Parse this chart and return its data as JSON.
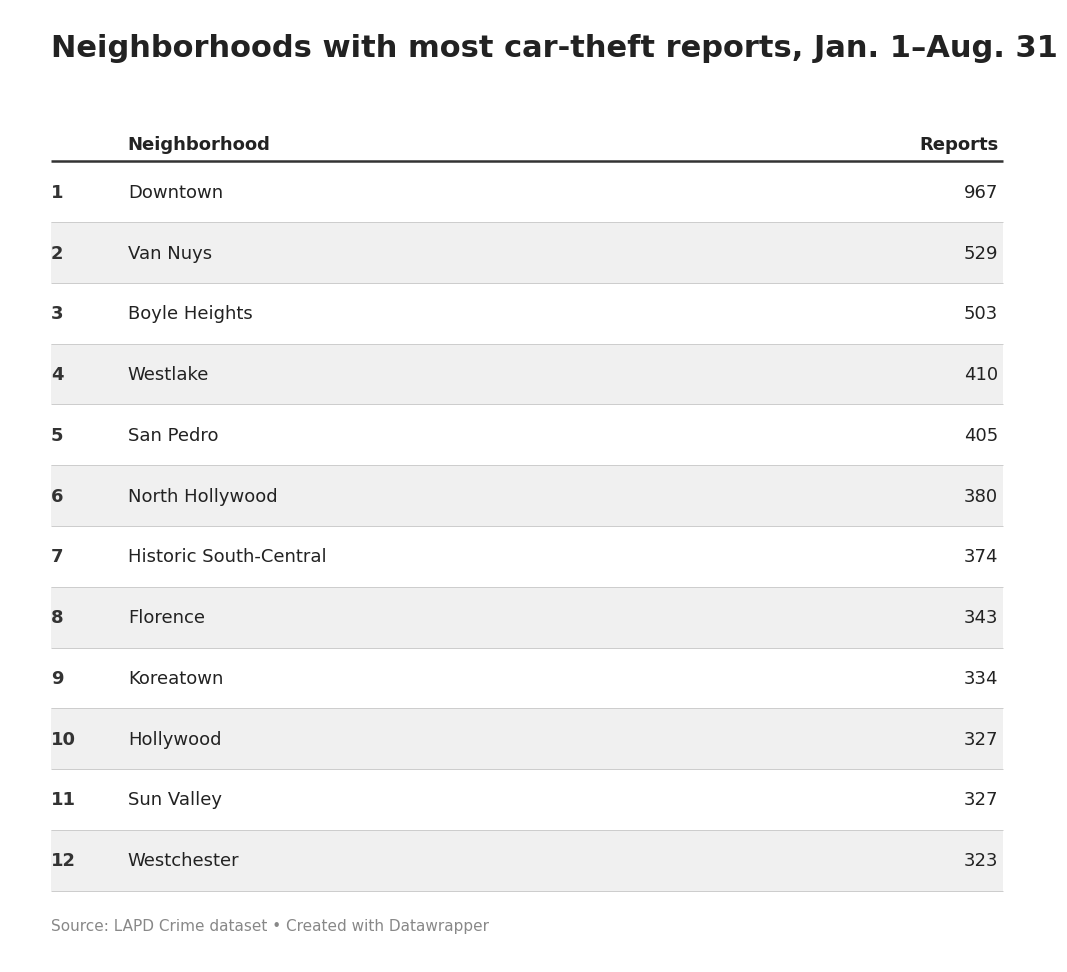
{
  "title": "Neighborhoods with most car-theft reports, Jan. 1–Aug. 31",
  "col_header_neighborhood": "Neighborhood",
  "col_header_reports": "Reports",
  "rows": [
    {
      "rank": "1",
      "neighborhood": "Downtown",
      "reports": "967"
    },
    {
      "rank": "2",
      "neighborhood": "Van Nuys",
      "reports": "529"
    },
    {
      "rank": "3",
      "neighborhood": "Boyle Heights",
      "reports": "503"
    },
    {
      "rank": "4",
      "neighborhood": "Westlake",
      "reports": "410"
    },
    {
      "rank": "5",
      "neighborhood": "San Pedro",
      "reports": "405"
    },
    {
      "rank": "6",
      "neighborhood": "North Hollywood",
      "reports": "380"
    },
    {
      "rank": "7",
      "neighborhood": "Historic South-Central",
      "reports": "374"
    },
    {
      "rank": "8",
      "neighborhood": "Florence",
      "reports": "343"
    },
    {
      "rank": "9",
      "neighborhood": "Koreatown",
      "reports": "334"
    },
    {
      "rank": "10",
      "neighborhood": "Hollywood",
      "reports": "327"
    },
    {
      "rank": "11",
      "neighborhood": "Sun Valley",
      "reports": "327"
    },
    {
      "rank": "12",
      "neighborhood": "Westchester",
      "reports": "323"
    }
  ],
  "source_text": "Source: LAPD Crime dataset • Created with Datawrapper",
  "bg_color": "#ffffff",
  "row_bg_even": "#f0f0f0",
  "row_bg_odd": "#ffffff",
  "header_line_color": "#333333",
  "row_line_color": "#cccccc",
  "title_fontsize": 22,
  "header_fontsize": 13,
  "row_fontsize": 13,
  "source_fontsize": 11,
  "text_color": "#222222",
  "rank_color": "#333333",
  "source_color": "#888888"
}
